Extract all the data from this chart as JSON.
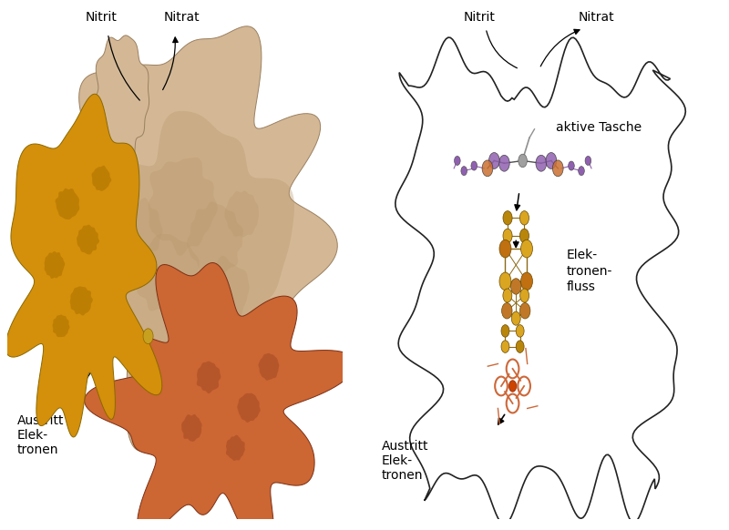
{
  "background": "#ffffff",
  "left_panel": {
    "nitrit_label": "Nitrit",
    "nitrat_label": "Nitrat",
    "austritt_label": "Austritt\nElek-\ntronen",
    "beige_color": "#D4B896",
    "beige_dark": "#B8976A",
    "yellow_color": "#D4900A",
    "yellow_dark": "#A86E00",
    "orange_color": "#CC6633",
    "orange_dark": "#9B4420"
  },
  "right_panel": {
    "nitrit_label": "Nitrit",
    "nitrat_label": "Nitrat",
    "aktive_tasche_label": "aktive Tasche",
    "elektronen_fluss_label": "Elek-\ntronen-\nfluss",
    "austritt_label": "Austritt\nElek-\ntronen",
    "outline_color": "#222222",
    "gold": "#DAA520",
    "orange_brown": "#CD6839",
    "purple": "#8060A0",
    "gray_mol": "#888888",
    "brown_mol": "#A0522D"
  },
  "font_size": 10,
  "font_size_small": 9
}
